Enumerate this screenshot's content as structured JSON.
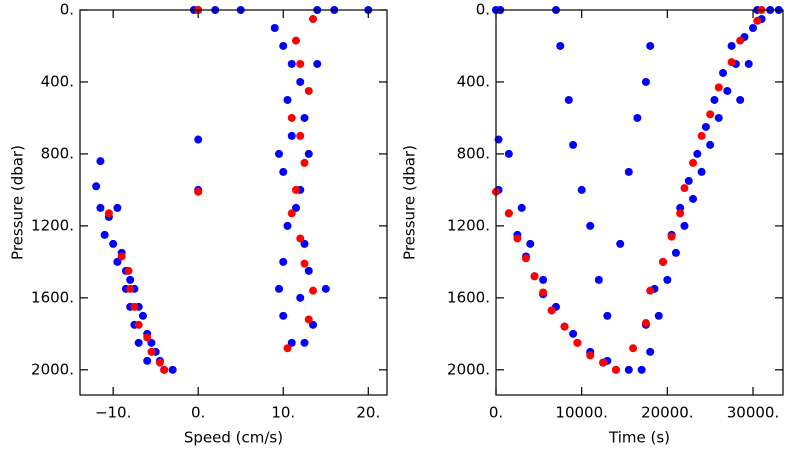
{
  "chart_data": [
    {
      "type": "scatter",
      "x_label": "Speed (cm/s)",
      "y_label": "Pressure (dbar)",
      "y_reversed": true,
      "xlim": [
        -13.9,
        22.2
      ],
      "ylim": [
        0,
        2140
      ],
      "xticks": [
        {
          "value": -10,
          "label": "−10."
        },
        {
          "value": 0,
          "label": "0."
        },
        {
          "value": 10,
          "label": "10."
        },
        {
          "value": 20,
          "label": "20."
        }
      ],
      "yticks": [
        {
          "value": 0,
          "label": "0."
        },
        {
          "value": 400,
          "label": "400."
        },
        {
          "value": 800,
          "label": "800."
        },
        {
          "value": 1200,
          "label": "1200."
        },
        {
          "value": 1600,
          "label": "1600."
        },
        {
          "value": 2000,
          "label": "2000."
        }
      ],
      "series": [
        {
          "color": "#0000ff",
          "x": [
            -11.5,
            -10.5,
            -9.5,
            -11,
            -10,
            -9,
            -8.5,
            -9.5,
            -8,
            -7.5,
            -8.5,
            -7,
            -8,
            -6.5,
            -7.5,
            -6,
            -7,
            -5.5,
            -5,
            -6,
            -4.5,
            -4,
            -3,
            -11.5,
            -12,
            0,
            0,
            0,
            0,
            -0.5,
            2,
            5,
            9,
            10,
            11,
            12,
            10.5,
            12.5,
            11,
            13,
            10,
            12,
            11.5,
            10.5,
            12.5,
            10,
            13,
            9.5,
            12,
            15,
            10,
            13.5,
            11,
            12.5,
            14,
            16,
            20,
            9.5,
            14
          ],
          "values": [
            1100,
            1150,
            1100,
            1250,
            1300,
            1350,
            1450,
            1400,
            1500,
            1550,
            1550,
            1650,
            1650,
            1700,
            1750,
            1800,
            1850,
            1850,
            1900,
            1950,
            1950,
            2000,
            2000,
            840,
            980,
            0,
            720,
            1000,
            1010,
            0,
            0,
            0,
            100,
            200,
            300,
            400,
            500,
            600,
            700,
            800,
            900,
            1000,
            1100,
            1200,
            1300,
            1400,
            1450,
            1550,
            1600,
            1550,
            1700,
            1750,
            1850,
            1850,
            0,
            0,
            0,
            800,
            300
          ]
        },
        {
          "color": "#ff0000",
          "x": [
            -10.5,
            -9,
            -8.2,
            -8,
            -7.5,
            -7,
            -6,
            -5.5,
            -4.5,
            -4,
            0,
            11,
            11.5,
            12,
            12.5,
            13.5,
            13,
            10.5,
            11,
            12,
            12.5,
            13,
            12,
            11.5,
            13.5,
            0
          ],
          "values": [
            1130,
            1370,
            1450,
            1550,
            1650,
            1750,
            1820,
            1900,
            1960,
            2000,
            1010,
            1130,
            1000,
            1270,
            1410,
            1560,
            1720,
            1880,
            600,
            700,
            850,
            450,
            300,
            170,
            50,
            0
          ]
        }
      ]
    },
    {
      "type": "scatter",
      "x_label": "Time (s)",
      "y_label": "Pressure (dbar)",
      "y_reversed": true,
      "xlim": [
        0,
        33500
      ],
      "ylim": [
        0,
        2140
      ],
      "xticks": [
        {
          "value": 0,
          "label": "0."
        },
        {
          "value": 10000,
          "label": "10000."
        },
        {
          "value": 20000,
          "label": "20000."
        },
        {
          "value": 30000,
          "label": "30000."
        }
      ],
      "yticks": [
        {
          "value": 0,
          "label": "0."
        },
        {
          "value": 400,
          "label": "400."
        },
        {
          "value": 800,
          "label": "800."
        },
        {
          "value": 1200,
          "label": "1200."
        },
        {
          "value": 1600,
          "label": "1600."
        },
        {
          "value": 2000,
          "label": "2000."
        }
      ],
      "series": [
        {
          "color": "#0000ff",
          "x": [
            0,
            300,
            300,
            1500,
            2500,
            3500,
            4500,
            5500,
            6500,
            8000,
            9500,
            11000,
            12500,
            14000,
            15500,
            500,
            1500,
            3000,
            4000,
            5500,
            7000,
            9000,
            11000,
            13000,
            7000,
            7500,
            8500,
            9000,
            10000,
            11000,
            12000,
            13000,
            18000,
            17500,
            16500,
            15500,
            14500,
            17000,
            18000,
            17500,
            19000,
            18500,
            20000,
            19500,
            21000,
            20500,
            22000,
            21500,
            23000,
            22500,
            24000,
            23500,
            25000,
            24500,
            26000,
            25500,
            27000,
            26500,
            28000,
            27500,
            29000,
            30000,
            31000,
            32000,
            30500,
            33000,
            29500,
            28500
          ],
          "values": [
            0,
            720,
            1000,
            1130,
            1250,
            1370,
            1480,
            1580,
            1670,
            1760,
            1850,
            1910,
            1960,
            2000,
            2000,
            0,
            800,
            1100,
            1300,
            1500,
            1650,
            1800,
            1900,
            1950,
            0,
            200,
            500,
            750,
            1000,
            1200,
            1500,
            1700,
            200,
            400,
            600,
            900,
            1300,
            2000,
            1900,
            1750,
            1700,
            1550,
            1500,
            1400,
            1350,
            1250,
            1200,
            1100,
            1050,
            950,
            900,
            800,
            750,
            650,
            600,
            500,
            450,
            350,
            300,
            200,
            150,
            100,
            50,
            0,
            0,
            0,
            300,
            500
          ]
        },
        {
          "color": "#ff0000",
          "x": [
            0,
            1500,
            2500,
            3500,
            4500,
            5500,
            6500,
            8000,
            9500,
            11000,
            12500,
            14000,
            16000,
            17500,
            18000,
            19500,
            20500,
            21500,
            22000,
            23000,
            24000,
            25000,
            26000,
            27500,
            28500,
            30500,
            31000
          ],
          "values": [
            1010,
            1130,
            1270,
            1380,
            1480,
            1570,
            1670,
            1760,
            1850,
            1920,
            1960,
            2000,
            1880,
            1740,
            1560,
            1400,
            1260,
            1130,
            990,
            850,
            700,
            580,
            430,
            290,
            170,
            60,
            0
          ]
        }
      ]
    }
  ]
}
